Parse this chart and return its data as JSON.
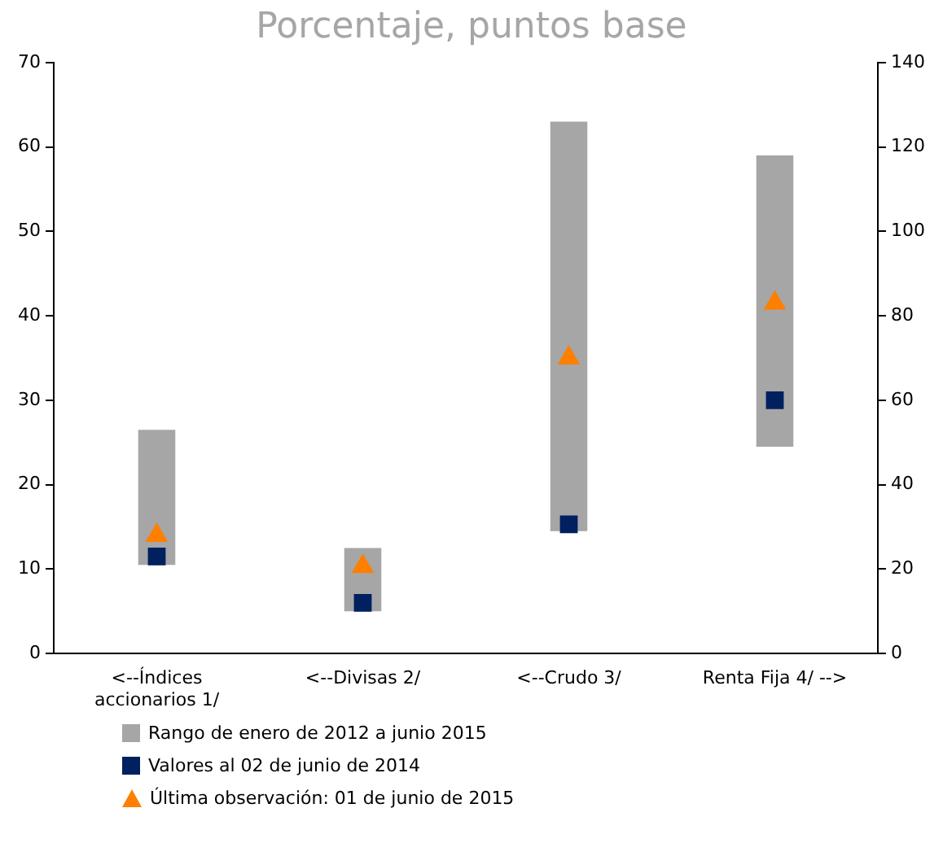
{
  "chart_data": {
    "type": "bar",
    "title": "Porcentaje, puntos base",
    "categories": [
      "<--Índices accionarios 1/",
      "<--Divisas 2/",
      "<--Crudo 3/",
      "Renta Fija 4/ -->"
    ],
    "series": [
      {
        "name": "Rango de enero de 2012 a junio 2015",
        "color": "#a6a6a6",
        "values": [
          16,
          7.5,
          48.5,
          null
        ],
        "base": [
          10.5,
          5,
          14.5,
          null
        ]
      },
      {
        "color": "#a6a6a6",
        "axis": "y2",
        "values": [
          null,
          null,
          null,
          69
        ],
        "base": [
          null,
          null,
          null,
          49
        ]
      },
      {
        "name": "Valores al 02 de junio de 2014",
        "type": "scatter",
        "marker": "square",
        "color": "#002060",
        "values": [
          11.5,
          6,
          15.3,
          null
        ]
      },
      {
        "type": "scatter",
        "marker": "square",
        "color": "#002060",
        "axis": "y2",
        "values": [
          null,
          null,
          null,
          60
        ]
      },
      {
        "name": "Última observación: 01 de junio de 2015",
        "type": "scatter",
        "marker": "triangle",
        "color": "#ff7f00",
        "values": [
          14,
          10.3,
          35,
          null
        ]
      },
      {
        "type": "scatter",
        "marker": "triangle",
        "color": "#ff7f00",
        "axis": "y2",
        "values": [
          null,
          null,
          null,
          83
        ]
      }
    ],
    "ylim": [
      0,
      70
    ],
    "yticks": [
      0,
      10,
      20,
      30,
      40,
      50,
      60,
      70
    ],
    "y2lim": [
      0,
      140
    ],
    "y2ticks": [
      0,
      20,
      40,
      60,
      80,
      100,
      120,
      140
    ],
    "grid": false,
    "legend": "bottom"
  }
}
